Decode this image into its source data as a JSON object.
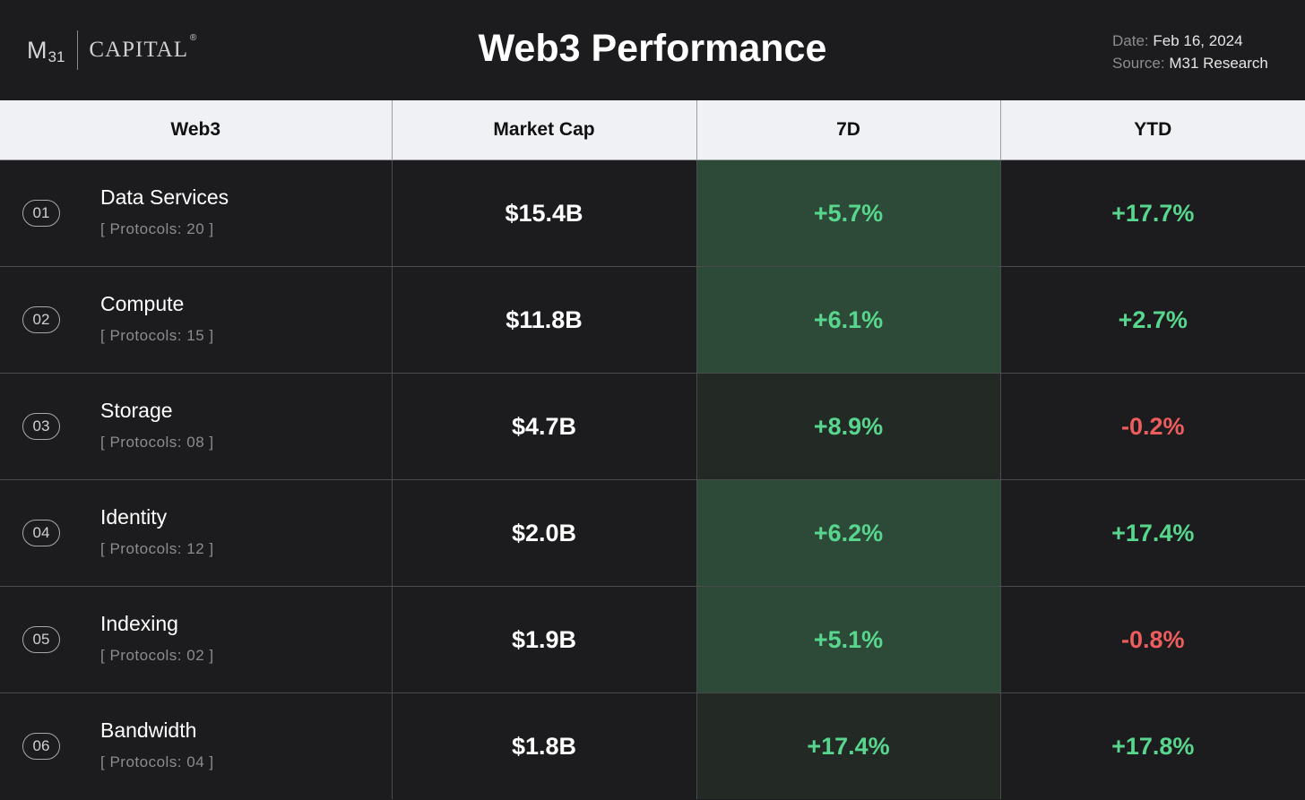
{
  "header": {
    "logo_m": "M",
    "logo_num": "31",
    "logo_capital": "CAPITAL",
    "logo_reg": "®",
    "title": "Web3 Performance",
    "date_key": "Date:",
    "date_value": "Feb 16, 2024",
    "source_key": "Source:",
    "source_value": "M31 Research"
  },
  "columns": [
    "Web3",
    "Market Cap",
    "7D",
    "YTD"
  ],
  "rows": [
    {
      "rank": "01",
      "name": "Data Services",
      "protocols": "[ Protocols: 20 ]",
      "market_cap": "$15.4B",
      "d7": "+5.7%",
      "ytd": "+17.7%",
      "ytd_sign": "pos",
      "d7_shade": "#2c4a37"
    },
    {
      "rank": "02",
      "name": "Compute",
      "protocols": "[ Protocols: 15 ]",
      "market_cap": "$11.8B",
      "d7": "+6.1%",
      "ytd": "+2.7%",
      "ytd_sign": "pos",
      "d7_shade": "#2c4a37"
    },
    {
      "rank": "03",
      "name": "Storage",
      "protocols": "[ Protocols: 08 ]",
      "market_cap": "$4.7B",
      "d7": "+8.9%",
      "ytd": "-0.2%",
      "ytd_sign": "neg",
      "d7_shade": "#232a26"
    },
    {
      "rank": "04",
      "name": "Identity",
      "protocols": "[ Protocols: 12 ]",
      "market_cap": "$2.0B",
      "d7": "+6.2%",
      "ytd": "+17.4%",
      "ytd_sign": "pos",
      "d7_shade": "#2c4a37"
    },
    {
      "rank": "05",
      "name": "Indexing",
      "protocols": "[ Protocols: 02 ]",
      "market_cap": "$1.9B",
      "d7": "+5.1%",
      "ytd": "-0.8%",
      "ytd_sign": "neg",
      "d7_shade": "#2c4a37"
    },
    {
      "rank": "06",
      "name": "Bandwidth",
      "protocols": "[ Protocols: 04 ]",
      "market_cap": "$1.8B",
      "d7": "+17.4%",
      "ytd": "+17.8%",
      "ytd_sign": "pos",
      "d7_shade": "#232a26"
    }
  ],
  "colors": {
    "positive": "#58d68d",
    "negative": "#ee5d5d",
    "background": "#1c1c1e",
    "header_row": "#f0f1f4"
  }
}
